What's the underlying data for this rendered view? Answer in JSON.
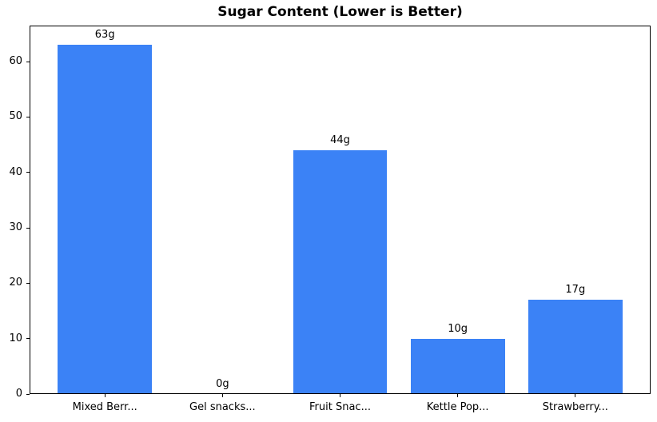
{
  "chart_data": {
    "type": "bar",
    "title": "Sugar Content (Lower is Better)",
    "categories": [
      "Mixed Berr...",
      "Gel snacks...",
      "Fruit Snac...",
      "Kettle Pop...",
      "Strawberry..."
    ],
    "values": [
      63,
      0,
      44,
      10,
      17
    ],
    "bar_labels": [
      "63g",
      "0g",
      "44g",
      "10g",
      "17g"
    ],
    "bar_color": "#3b82f6",
    "axis_color": "#000000",
    "text_color": "#000000",
    "yticks": [
      0,
      10,
      20,
      30,
      40,
      50,
      60
    ],
    "ylim": [
      0,
      66.5
    ],
    "xlabel": "",
    "ylabel": "",
    "grid": false,
    "legend_position": "none",
    "background": "#ffffff"
  }
}
